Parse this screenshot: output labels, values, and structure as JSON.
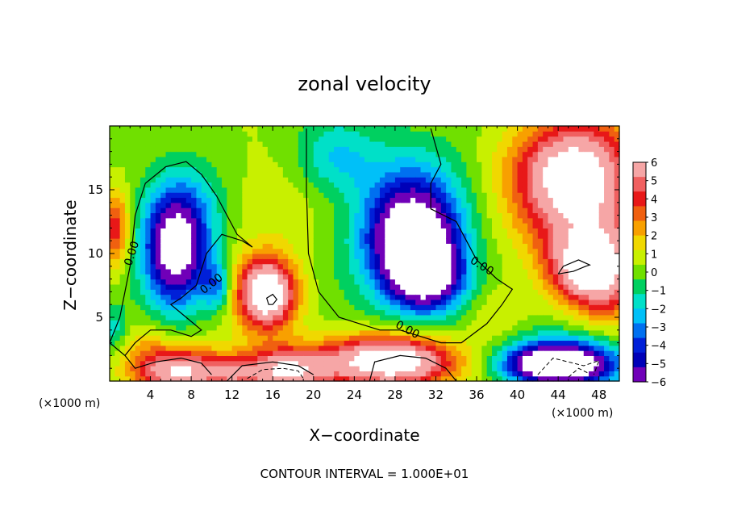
{
  "chart_data": {
    "type": "heatmap",
    "title": "zonal velocity",
    "xlabel": "X−coordinate",
    "ylabel": "Z−coordinate",
    "x_unit": "(×1000 m)",
    "x_unit_right": "(×1000 m)",
    "xlim": [
      0,
      50
    ],
    "ylim": [
      0,
      20
    ],
    "x_ticks": [
      4,
      8,
      12,
      16,
      20,
      24,
      28,
      32,
      36,
      40,
      44,
      48
    ],
    "y_ticks": [
      5,
      10,
      15
    ],
    "footer": "CONTOUR INTERVAL = 1.000E+01",
    "colorbar": {
      "range": [
        -6,
        6
      ],
      "labels": [
        "6",
        "5",
        "4",
        "3",
        "2",
        "1",
        "0",
        "−1",
        "−2",
        "−3",
        "−4",
        "−5",
        "−6"
      ],
      "colors": [
        "#f6a6a6",
        "#f06060",
        "#e81818",
        "#f06010",
        "#f8a000",
        "#f0d800",
        "#c8f000",
        "#70e000",
        "#00d060",
        "#00e0c8",
        "#00c0f8",
        "#0070f0",
        "#0020d8",
        "#0000b8",
        "#7000b8"
      ]
    },
    "contour_labels": [
      {
        "text": "0.00",
        "x": 2.2,
        "z": 10.0,
        "angle": -72
      },
      {
        "text": "0.00",
        "x": 10.0,
        "z": 7.6,
        "angle": -38
      },
      {
        "text": "0.00",
        "x": 29.2,
        "z": 4.0,
        "angle": 28
      },
      {
        "text": "0.00",
        "x": 36.5,
        "z": 9.0,
        "angle": 32
      }
    ],
    "blobs": [
      {
        "x": 15,
        "z": 14.5,
        "rx": 7.5,
        "rz": 4.5,
        "v": 1.0
      },
      {
        "x": 3,
        "z": 3,
        "rx": 3.0,
        "rz": 2.0,
        "v": 1.2
      },
      {
        "x": 6.5,
        "z": 10.2,
        "rx": 2.9,
        "rz": 4.2,
        "v": -7.5
      },
      {
        "x": 7.5,
        "z": 13.5,
        "rx": 4.5,
        "rz": 4.0,
        "v": -2.5
      },
      {
        "x": 15.5,
        "z": 7.0,
        "rx": 2.5,
        "rz": 2.5,
        "v": 6.5
      },
      {
        "x": 15.0,
        "z": 6.5,
        "rx": 4.0,
        "rz": 3.5,
        "v": 2.2
      },
      {
        "x": 10.5,
        "z": 7.5,
        "rx": 1.5,
        "rz": 2.0,
        "v": -3.5
      },
      {
        "x": 7.0,
        "z": 0.8,
        "rx": 4.5,
        "rz": 1.8,
        "v": 6.5
      },
      {
        "x": 17.0,
        "z": 0.8,
        "rx": 4.5,
        "rz": 1.8,
        "v": 6.5
      },
      {
        "x": 12.0,
        "z": 0.5,
        "rx": 2.0,
        "rz": 1.2,
        "v": 2.0
      },
      {
        "x": 22.0,
        "z": 17.5,
        "rx": 4.0,
        "rz": 3.0,
        "v": -2.5
      },
      {
        "x": 30.0,
        "z": 10.5,
        "rx": 4.0,
        "rz": 4.0,
        "v": -8.0
      },
      {
        "x": 31.5,
        "z": 8.0,
        "rx": 3.5,
        "rz": 2.5,
        "v": -5.0
      },
      {
        "x": 29.0,
        "z": 13.0,
        "rx": 5.5,
        "rz": 5.0,
        "v": -3.5
      },
      {
        "x": 28.0,
        "z": 1.2,
        "rx": 6.5,
        "rz": 1.8,
        "v": 6.5
      },
      {
        "x": 27.0,
        "z": 2.5,
        "rx": 6.0,
        "rz": 1.6,
        "v": 3.0
      },
      {
        "x": 46.0,
        "z": 15.0,
        "rx": 6.0,
        "rz": 5.5,
        "v": 6.8
      },
      {
        "x": 45.0,
        "z": 17.0,
        "rx": 5.0,
        "rz": 3.0,
        "v": 2.0
      },
      {
        "x": 46.5,
        "z": 8.8,
        "rx": 3.5,
        "rz": 2.6,
        "v": 5.5
      },
      {
        "x": 49.0,
        "z": 8.0,
        "rx": 3.0,
        "rz": 4.0,
        "v": 3.0
      },
      {
        "x": 44.0,
        "z": 1.5,
        "rx": 6.0,
        "rz": 2.0,
        "v": -6.5
      },
      {
        "x": 44.0,
        "z": 1.3,
        "rx": 4.0,
        "rz": 1.2,
        "v": -6.0
      },
      {
        "x": 0.5,
        "z": 12.0,
        "rx": 1.5,
        "rz": 3.0,
        "v": 4.0
      },
      {
        "x": 0.5,
        "z": 4.0,
        "rx": 1.5,
        "rz": 2.0,
        "v": -2.0
      },
      {
        "x": 38.0,
        "z": 5.0,
        "rx": 3.0,
        "rz": 3.0,
        "v": 1.0
      }
    ],
    "zero_contours": [
      [
        [
          0.0,
          3.0
        ],
        [
          1.0,
          5.0
        ],
        [
          2.0,
          9.0
        ],
        [
          2.5,
          13.0
        ],
        [
          3.5,
          15.5
        ],
        [
          5.5,
          16.8
        ],
        [
          7.5,
          17.2
        ],
        [
          9.0,
          16.2
        ],
        [
          10.5,
          14.5
        ],
        [
          11.5,
          13.0
        ],
        [
          12.5,
          11.5
        ],
        [
          14.0,
          10.5
        ],
        [
          13.0,
          11.0
        ],
        [
          11.0,
          11.5
        ],
        [
          9.5,
          10.0
        ],
        [
          8.5,
          7.5
        ],
        [
          7.0,
          6.5
        ],
        [
          6.0,
          6.0
        ],
        [
          7.5,
          5.0
        ],
        [
          9.0,
          4.0
        ],
        [
          8.0,
          3.5
        ],
        [
          6.0,
          4.0
        ],
        [
          4.0,
          4.0
        ],
        [
          2.5,
          3.0
        ],
        [
          1.5,
          2.0
        ]
      ],
      [
        [
          19.3,
          19.8
        ],
        [
          19.3,
          15.0
        ],
        [
          19.5,
          10.0
        ],
        [
          20.5,
          7.0
        ],
        [
          22.5,
          5.0
        ],
        [
          24.5,
          4.5
        ],
        [
          26.5,
          4.0
        ],
        [
          28.5,
          4.0
        ],
        [
          30.5,
          3.5
        ],
        [
          32.5,
          3.0
        ],
        [
          34.5,
          3.0
        ],
        [
          37.0,
          4.5
        ],
        [
          38.5,
          6.0
        ],
        [
          39.5,
          7.2
        ],
        [
          38.0,
          8.0
        ],
        [
          36.0,
          9.5
        ],
        [
          35.0,
          11.0
        ],
        [
          34.0,
          12.5
        ],
        [
          31.5,
          13.5
        ],
        [
          31.5,
          15.5
        ],
        [
          32.5,
          17.0
        ],
        [
          31.5,
          19.8
        ]
      ],
      [
        [
          0.0,
          3.0
        ],
        [
          1.5,
          2.0
        ],
        [
          2.5,
          1.0
        ],
        [
          4.5,
          1.5
        ],
        [
          7.0,
          1.8
        ],
        [
          9.0,
          1.4
        ],
        [
          10.0,
          0.5
        ]
      ],
      [
        [
          11.5,
          0.0
        ],
        [
          13.0,
          1.2
        ],
        [
          16.0,
          1.5
        ],
        [
          18.5,
          1.2
        ],
        [
          20.0,
          0.5
        ]
      ],
      [
        [
          25.5,
          0.0
        ],
        [
          26.0,
          1.5
        ],
        [
          28.5,
          2.0
        ],
        [
          31.0,
          1.8
        ],
        [
          33.0,
          1.0
        ],
        [
          34.0,
          0.0
        ]
      ],
      [
        [
          16.0,
          6.0
        ],
        [
          16.4,
          6.4
        ],
        [
          16.0,
          6.8
        ],
        [
          15.4,
          6.5
        ],
        [
          15.6,
          6.0
        ],
        [
          16.0,
          6.0
        ]
      ],
      [
        [
          44.0,
          8.4
        ],
        [
          45.5,
          8.6
        ],
        [
          46.7,
          9.0
        ],
        [
          47.1,
          9.1
        ],
        [
          46.0,
          9.5
        ],
        [
          44.5,
          9.0
        ],
        [
          44.0,
          8.4
        ]
      ]
    ],
    "dashed_contours": [
      [
        [
          13.5,
          0.2
        ],
        [
          15.0,
          0.9
        ],
        [
          17.0,
          1.0
        ],
        [
          18.5,
          0.8
        ],
        [
          19.0,
          0.2
        ]
      ],
      [
        [
          42.0,
          0.5
        ],
        [
          43.5,
          1.8
        ],
        [
          45.0,
          1.5
        ],
        [
          46.5,
          1.2
        ],
        [
          48.0,
          1.6
        ],
        [
          47.5,
          0.5
        ]
      ],
      [
        [
          45.0,
          0.3
        ],
        [
          46.0,
          1.0
        ],
        [
          47.0,
          0.6
        ]
      ]
    ]
  }
}
